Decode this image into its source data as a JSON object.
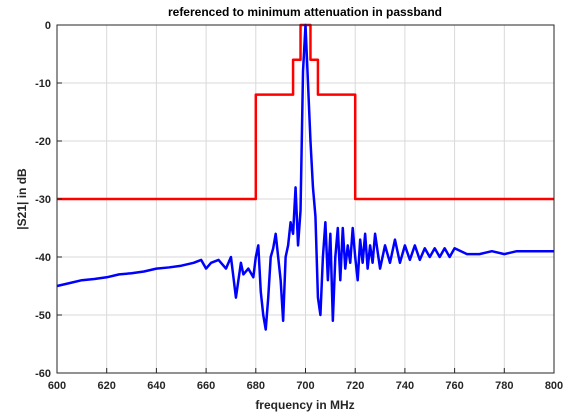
{
  "chart_data": {
    "type": "line",
    "title": "referenced to minimum attenuation in passband",
    "xlabel": "frequency in MHz",
    "ylabel": "|S21| in dB",
    "xlim": [
      600,
      800
    ],
    "ylim": [
      -60,
      0
    ],
    "xticks": [
      600,
      620,
      640,
      660,
      680,
      700,
      720,
      740,
      760,
      780,
      800
    ],
    "yticks": [
      0,
      -10,
      -20,
      -30,
      -40,
      -50,
      -60
    ],
    "grid": true,
    "colors": {
      "mask": "#ff0000",
      "measured": "#0000ff",
      "grid": "#d9d9d9",
      "axis": "#262626"
    },
    "series": [
      {
        "key": "mask",
        "x": [
          600,
          680,
          680,
          695,
          695,
          698,
          698,
          702,
          702,
          705,
          705,
          720,
          720,
          800
        ],
        "y": [
          -30,
          -30,
          -12,
          -12,
          -6,
          -6,
          0,
          0,
          -6,
          -6,
          -12,
          -12,
          -30,
          -30
        ]
      },
      {
        "key": "measured",
        "x": [
          600,
          605,
          610,
          615,
          620,
          625,
          630,
          635,
          640,
          645,
          650,
          655,
          658,
          660,
          662,
          665,
          668,
          670,
          672,
          674,
          675,
          677,
          679,
          680,
          681,
          682,
          683,
          684,
          685,
          686,
          687,
          688,
          689,
          690,
          691,
          692,
          693,
          694,
          695,
          696,
          697,
          698,
          699,
          700,
          701,
          702,
          703,
          704,
          705,
          706,
          707,
          708,
          709,
          710,
          711,
          712,
          713,
          714,
          715,
          716,
          717,
          718,
          719,
          720,
          721,
          722,
          723,
          724,
          725,
          726,
          727,
          728,
          730,
          732,
          734,
          736,
          738,
          740,
          742,
          744,
          746,
          748,
          750,
          752,
          754,
          756,
          758,
          760,
          765,
          770,
          775,
          780,
          785,
          790,
          795,
          800
        ],
        "y": [
          -45,
          -44.5,
          -44,
          -43.8,
          -43.5,
          -43,
          -42.8,
          -42.5,
          -42,
          -41.8,
          -41.5,
          -41,
          -40.5,
          -42,
          -41,
          -40.5,
          -42,
          -40,
          -47,
          -41,
          -43,
          -42,
          -43.5,
          -40,
          -38,
          -46,
          -50,
          -52.5,
          -47,
          -40,
          -38.5,
          -36,
          -40,
          -44,
          -51,
          -40,
          -38,
          -34,
          -36,
          -28,
          -38,
          -32,
          -8,
          0,
          -10,
          -20,
          -28,
          -33,
          -47,
          -50,
          -40,
          -34,
          -44,
          -36,
          -51,
          -40,
          -35,
          -44,
          -35,
          -42,
          -38,
          -41,
          -35,
          -40,
          -44,
          -37,
          -41,
          -36,
          -42,
          -38,
          -41,
          -36,
          -42,
          -38,
          -41,
          -37,
          -41,
          -38,
          -40.5,
          -38,
          -40.5,
          -38.5,
          -40,
          -38.5,
          -40,
          -38.5,
          -40,
          -38.5,
          -39.5,
          -39.5,
          -39,
          -39.5,
          -39,
          -39,
          -39,
          -39
        ]
      }
    ]
  }
}
